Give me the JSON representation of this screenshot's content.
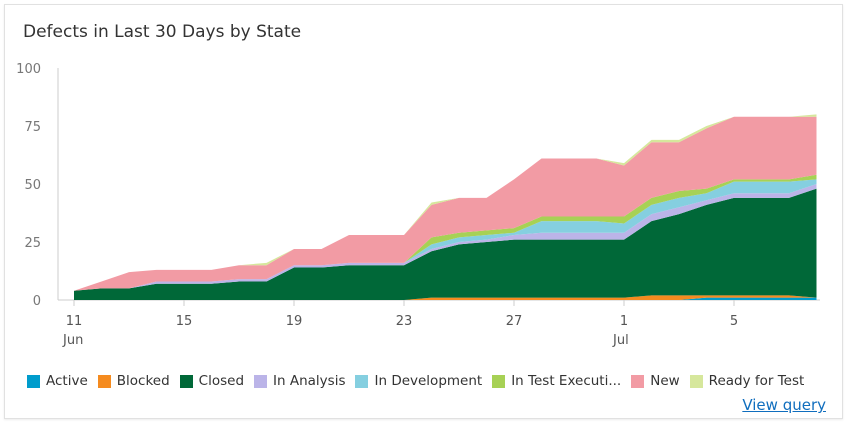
{
  "widget": {
    "title": "Defects in Last 30 Days by State",
    "view_query": "View query"
  },
  "chart_data": {
    "type": "area",
    "stacked": true,
    "title": "Defects in Last 30 Days by State",
    "ylim": [
      0,
      100
    ],
    "yticks": [
      0,
      25,
      50,
      75,
      100
    ],
    "xtick_labels": [
      {
        "day": 0,
        "label": "11",
        "sub": "Jun"
      },
      {
        "day": 4,
        "label": "15"
      },
      {
        "day": 8,
        "label": "19"
      },
      {
        "day": 12,
        "label": "23"
      },
      {
        "day": 16,
        "label": "27"
      },
      {
        "day": 20,
        "label": "1",
        "sub": "Jul"
      },
      {
        "day": 24,
        "label": "5"
      }
    ],
    "x": [
      "Jun 11",
      "Jun 12",
      "Jun 13",
      "Jun 14",
      "Jun 15",
      "Jun 16",
      "Jun 17",
      "Jun 18",
      "Jun 19",
      "Jun 20",
      "Jun 21",
      "Jun 22",
      "Jun 23",
      "Jun 24",
      "Jun 25",
      "Jun 26",
      "Jun 27",
      "Jun 28",
      "Jun 29",
      "Jun 30",
      "Jul 1",
      "Jul 2",
      "Jul 3",
      "Jul 4",
      "Jul 5",
      "Jul 6",
      "Jul 7",
      "Jul 8"
    ],
    "legend_position": "bottom",
    "series": [
      {
        "name": "Active",
        "color": "#009ccc",
        "values": [
          0,
          0,
          0,
          0,
          0,
          0,
          0,
          0,
          0,
          0,
          0,
          0,
          0,
          0,
          0,
          0,
          0,
          0,
          0,
          0,
          0,
          0,
          0,
          1,
          1,
          1,
          1,
          1
        ]
      },
      {
        "name": "Blocked",
        "color": "#f58b1f",
        "values": [
          0,
          0,
          0,
          0,
          0,
          0,
          0,
          0,
          0,
          0,
          0,
          0,
          0,
          1,
          1,
          1,
          1,
          1,
          1,
          1,
          1,
          2,
          2,
          1,
          1,
          1,
          1,
          0
        ]
      },
      {
        "name": "Closed",
        "color": "#006838",
        "values": [
          4,
          5,
          5,
          7,
          7,
          7,
          8,
          8,
          14,
          14,
          15,
          15,
          15,
          20,
          23,
          24,
          25,
          25,
          25,
          25,
          25,
          32,
          35,
          39,
          42,
          42,
          42,
          47
        ]
      },
      {
        "name": "In Analysis",
        "color": "#bbb4e8",
        "values": [
          0,
          0,
          0,
          1,
          1,
          1,
          1,
          1,
          1,
          1,
          1,
          1,
          1,
          1,
          1,
          1,
          2,
          3,
          3,
          3,
          3,
          3,
          3,
          2,
          2,
          2,
          2,
          2
        ]
      },
      {
        "name": "In Development",
        "color": "#85cfe0",
        "values": [
          0,
          0,
          0,
          0,
          0,
          0,
          0,
          0,
          0,
          0,
          0,
          0,
          0,
          2,
          2,
          2,
          1,
          5,
          5,
          5,
          4,
          4,
          4,
          3,
          5,
          5,
          5,
          2
        ]
      },
      {
        "name": "In Test Executi...",
        "color": "#a7d155",
        "values": [
          0,
          0,
          0,
          0,
          0,
          0,
          0,
          0,
          0,
          0,
          0,
          0,
          0,
          3,
          2,
          2,
          2,
          2,
          2,
          2,
          3,
          3,
          3,
          2,
          1,
          1,
          1,
          2
        ]
      },
      {
        "name": "New",
        "color": "#f29ba4",
        "values": [
          0,
          3,
          7,
          5,
          5,
          5,
          6,
          6,
          7,
          7,
          12,
          12,
          12,
          14,
          15,
          14,
          21,
          25,
          25,
          25,
          22,
          24,
          21,
          26,
          27,
          27,
          27,
          25
        ]
      },
      {
        "name": "Ready for Test",
        "color": "#d6e79c",
        "values": [
          0,
          0,
          0,
          0,
          0,
          0,
          0,
          1,
          0,
          0,
          0,
          0,
          0,
          1,
          0,
          0,
          0,
          0,
          0,
          0,
          1,
          1,
          1,
          1,
          0,
          0,
          0,
          1
        ]
      }
    ]
  }
}
